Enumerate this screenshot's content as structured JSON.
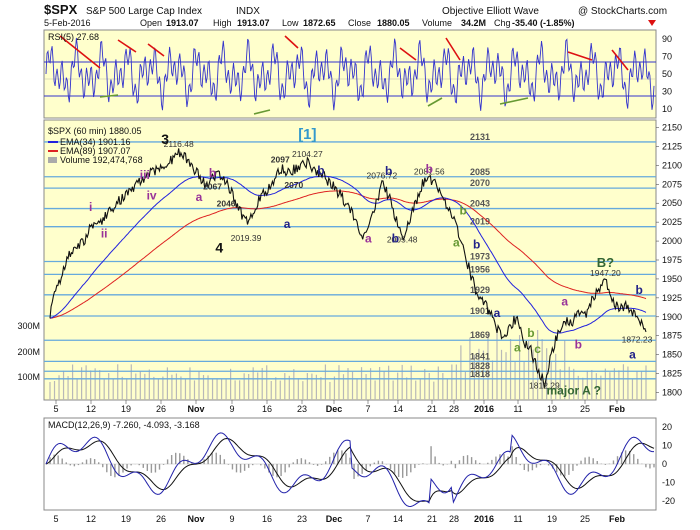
{
  "header": {
    "symbol": "$SPX",
    "name": "S&P 500 Large Cap Index",
    "exchange": "INDX",
    "title_right": "Objective Elliott Wave",
    "copyright": "@ StockCharts.com",
    "date": "5-Feb-2016",
    "open_label": "Open",
    "open": "1913.07",
    "high_label": "High",
    "high": "1913.07",
    "low_label": "Low",
    "low": "1872.65",
    "close_label": "Close",
    "close": "1880.05",
    "volume_label": "Volume",
    "volume": "34.2M",
    "chg_label": "Chg",
    "chg": "-35.40 (-1.85%)"
  },
  "colors": {
    "panel_bg": "#ffffcc",
    "rsi_line": "#3333cc",
    "ema34": "#2222dd",
    "ema89": "#dd2222",
    "price": "#111111",
    "fib_line": "#66aadd",
    "red_annot": "#dd1111",
    "green_annot": "#669933",
    "purple_annot": "#993399",
    "navy_annot": "#222288",
    "dark_green": "#336633"
  },
  "rsi": {
    "label": "RSI(5) 27.68",
    "ticks": [
      "90",
      "70",
      "50",
      "30",
      "10"
    ]
  },
  "price_legend": {
    "price_label": "$SPX (60 min) 1880.05",
    "ema34_label": "EMA(34) 1901.16",
    "ema89_label": "EMA(89) 1907.07",
    "volume_label": "Volume 192,474,768"
  },
  "macd": {
    "label": "MACD(12,26,9) -7.260, -4.093, -3.168",
    "ticks": [
      "20",
      "10",
      "0",
      "-10",
      "-20"
    ]
  },
  "chart_data": {
    "type": "line",
    "title": "$SPX S&P 500 Large Cap Index INDX",
    "x_labels": [
      "5",
      "12",
      "19",
      "26",
      "Nov",
      "9",
      "16",
      "23",
      "Dec",
      "7",
      "14",
      "21",
      "28",
      "2016",
      "11",
      "19",
      "25",
      "Feb"
    ],
    "y_ticks": [
      "2150",
      "2125",
      "2100",
      "2075",
      "2050",
      "2025",
      "2000",
      "1975",
      "1950",
      "1925",
      "1900",
      "1875",
      "1850",
      "1825",
      "1800"
    ],
    "ylim": [
      1790,
      2160
    ],
    "volume_ticks": [
      "300M",
      "200M",
      "100M"
    ],
    "fib_levels": [
      2131,
      2085,
      2070,
      2043,
      2019,
      1973,
      1956,
      1929,
      1901,
      1869,
      1841,
      1828,
      1818
    ],
    "fib_labels": [
      "2131",
      "2085",
      "2070",
      "2043",
      "2019",
      "1973",
      "1956",
      "1929",
      "1901",
      "1869",
      "1841",
      "1828",
      "1818"
    ],
    "price_series": [
      [
        0,
        1905
      ],
      [
        3,
        1940
      ],
      [
        6,
        1960
      ],
      [
        9,
        1985
      ],
      [
        12,
        1990
      ],
      [
        15,
        2000
      ],
      [
        18,
        2018
      ],
      [
        21,
        2025
      ],
      [
        24,
        2030
      ],
      [
        27,
        2040
      ],
      [
        30,
        2052
      ],
      [
        33,
        2060
      ],
      [
        36,
        2068
      ],
      [
        39,
        2075
      ],
      [
        42,
        2085
      ],
      [
        45,
        2090
      ],
      [
        48,
        2095
      ],
      [
        51,
        2100
      ],
      [
        54,
        2108
      ],
      [
        57,
        2116
      ],
      [
        60,
        2110
      ],
      [
        63,
        2100
      ],
      [
        66,
        2085
      ],
      [
        69,
        2075
      ],
      [
        72,
        2082
      ],
      [
        75,
        2090
      ],
      [
        78,
        2078
      ],
      [
        81,
        2060
      ],
      [
        84,
        2040
      ],
      [
        87,
        2025
      ],
      [
        90,
        2040
      ],
      [
        93,
        2058
      ],
      [
        96,
        2067
      ],
      [
        99,
        2080
      ],
      [
        102,
        2097
      ],
      [
        105,
        2090
      ],
      [
        108,
        2095
      ],
      [
        111,
        2100
      ],
      [
        114,
        2104
      ],
      [
        117,
        2095
      ],
      [
        120,
        2090
      ],
      [
        123,
        2080
      ],
      [
        126,
        2070
      ],
      [
        129,
        2060
      ],
      [
        132,
        2045
      ],
      [
        135,
        2030
      ],
      [
        138,
        2005
      ],
      [
        141,
        2020
      ],
      [
        144,
        2045
      ],
      [
        147,
        2076
      ],
      [
        150,
        2060
      ],
      [
        153,
        2030
      ],
      [
        156,
        2005
      ],
      [
        159,
        2025
      ],
      [
        162,
        2050
      ],
      [
        165,
        2075
      ],
      [
        168,
        2081
      ],
      [
        171,
        2075
      ],
      [
        174,
        2060
      ],
      [
        177,
        2040
      ],
      [
        180,
        2020
      ],
      [
        183,
        1990
      ],
      [
        186,
        1960
      ],
      [
        189,
        1930
      ],
      [
        192,
        1920
      ],
      [
        195,
        1905
      ],
      [
        198,
        1885
      ],
      [
        201,
        1870
      ],
      [
        204,
        1890
      ],
      [
        207,
        1900
      ],
      [
        210,
        1865
      ],
      [
        213,
        1855
      ],
      [
        216,
        1830
      ],
      [
        219,
        1812
      ],
      [
        222,
        1850
      ],
      [
        225,
        1880
      ],
      [
        228,
        1895
      ],
      [
        231,
        1890
      ],
      [
        234,
        1910
      ],
      [
        237,
        1900
      ],
      [
        240,
        1920
      ],
      [
        243,
        1935
      ],
      [
        246,
        1947
      ],
      [
        249,
        1925
      ],
      [
        252,
        1910
      ],
      [
        255,
        1915
      ],
      [
        258,
        1905
      ],
      [
        261,
        1895
      ],
      [
        264,
        1880
      ]
    ],
    "annotations": [
      {
        "text": "3",
        "color": "#111111"
      },
      {
        "text": "4",
        "color": "#111111"
      },
      {
        "text": "[1]",
        "color": "#3399cc"
      },
      {
        "text": "i",
        "color": "#993399"
      },
      {
        "text": "ii",
        "color": "#993399"
      },
      {
        "text": "iii",
        "color": "#993399"
      },
      {
        "text": "iv",
        "color": "#993399"
      },
      {
        "text": "a",
        "color": "#993399"
      },
      {
        "text": "b",
        "color": "#993399"
      },
      {
        "text": "a",
        "color": "#222288"
      },
      {
        "text": "b",
        "color": "#222288"
      },
      {
        "text": "b",
        "color": "#222288"
      },
      {
        "text": "a",
        "color": "#993399"
      },
      {
        "text": "b",
        "color": "#222288"
      },
      {
        "text": "b",
        "color": "#993399"
      },
      {
        "text": "a",
        "color": "#669933"
      },
      {
        "text": "b",
        "color": "#669933"
      },
      {
        "text": "b",
        "color": "#222288"
      },
      {
        "text": "a",
        "color": "#222288"
      },
      {
        "text": "a",
        "color": "#669933"
      },
      {
        "text": "b",
        "color": "#669933"
      },
      {
        "text": "c",
        "color": "#669933"
      },
      {
        "text": "a",
        "color": "#993399"
      },
      {
        "text": "b",
        "color": "#993399"
      },
      {
        "text": "a",
        "color": "#222288"
      },
      {
        "text": "b",
        "color": "#222288"
      },
      {
        "text": "B?",
        "color": "#336633"
      },
      {
        "text": "major A ?",
        "color": "#336633"
      }
    ],
    "price_labels": [
      "2116.48",
      "2019.39",
      "2046",
      "2067",
      "2097",
      "2070",
      "2104.27",
      "2076.72",
      "2005.48",
      "2081.56",
      "1812.29",
      "1947.20",
      "1872.23"
    ]
  }
}
